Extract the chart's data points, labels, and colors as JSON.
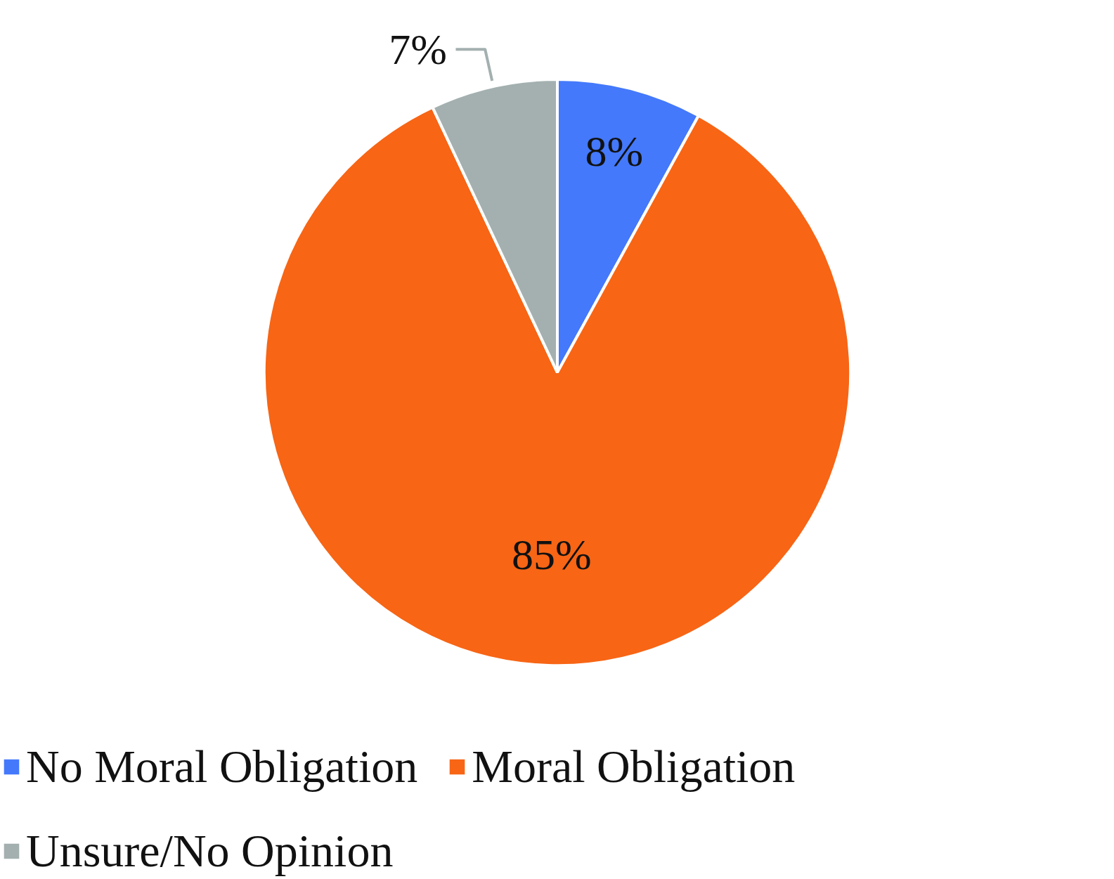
{
  "chart_data": {
    "type": "pie",
    "categories": [
      "No Moral Obligation",
      "Moral Obligation",
      "Unsure/No Opinion"
    ],
    "values": [
      8,
      85,
      7
    ],
    "colors": [
      "#4479fb",
      "#f76515",
      "#a4b0b0"
    ],
    "value_labels": [
      "8%",
      "85%",
      "7%"
    ],
    "legend": "bottom"
  }
}
